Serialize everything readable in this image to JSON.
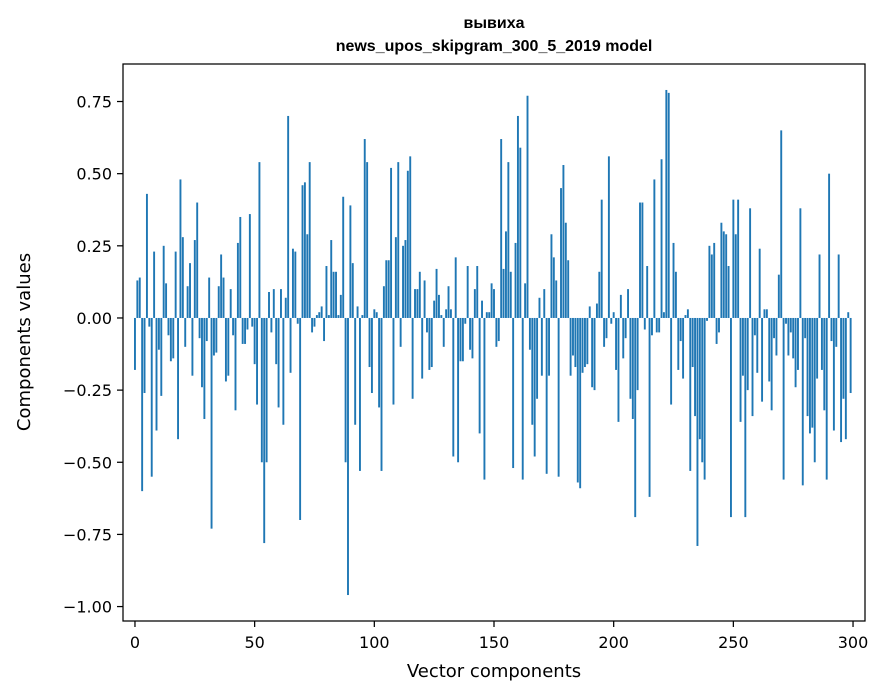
{
  "chart_data": {
    "type": "bar",
    "title": "вывиха",
    "subtitle": "news_upos_skipgram_300_5_2019 model",
    "xlabel": "Vector components",
    "ylabel": "Components values",
    "xlim": [
      -5,
      305
    ],
    "ylim": [
      -1.05,
      0.88
    ],
    "xticks": [
      0,
      50,
      100,
      150,
      200,
      250,
      300
    ],
    "yticks": [
      -1.0,
      -0.75,
      -0.5,
      -0.25,
      0.0,
      0.25,
      0.5,
      0.75
    ],
    "xtick_labels": [
      "0",
      "50",
      "100",
      "150",
      "200",
      "250",
      "300"
    ],
    "ytick_labels": [
      "−1.00",
      "−0.75",
      "−0.50",
      "−0.25",
      "0.00",
      "0.25",
      "0.50",
      "0.75"
    ],
    "bar_color": "#1f77b4",
    "values": [
      -0.18,
      0.13,
      0.14,
      -0.6,
      -0.26,
      0.43,
      -0.03,
      -0.55,
      0.23,
      -0.39,
      -0.11,
      -0.27,
      0.25,
      0.12,
      -0.06,
      -0.15,
      -0.14,
      0.23,
      -0.42,
      0.48,
      0.28,
      -0.1,
      0.11,
      0.19,
      -0.2,
      0.27,
      0.4,
      -0.07,
      -0.24,
      -0.35,
      -0.08,
      0.14,
      -0.73,
      -0.13,
      -0.12,
      0.11,
      0.22,
      0.14,
      -0.22,
      -0.2,
      0.1,
      -0.06,
      -0.32,
      0.26,
      0.35,
      -0.09,
      -0.09,
      -0.04,
      0.36,
      -0.03,
      -0.16,
      -0.3,
      0.54,
      -0.5,
      -0.78,
      -0.5,
      0.09,
      -0.05,
      0.1,
      -0.16,
      -0.31,
      0.1,
      -0.37,
      0.07,
      0.7,
      -0.19,
      0.24,
      0.23,
      -0.02,
      -0.7,
      0.46,
      0.47,
      0.29,
      0.54,
      -0.05,
      -0.03,
      0.01,
      0.02,
      0.04,
      -0.08,
      0.18,
      0.01,
      0.27,
      0.16,
      0.16,
      0.01,
      0.08,
      0.42,
      -0.5,
      -0.96,
      0.39,
      0.19,
      -0.37,
      0.04,
      -0.53,
      0.01,
      0.62,
      0.54,
      -0.17,
      -0.26,
      0.03,
      0.02,
      -0.31,
      -0.53,
      0.11,
      0.2,
      0.2,
      0.52,
      -0.3,
      0.28,
      0.54,
      -0.1,
      0.25,
      0.27,
      0.51,
      0.56,
      -0.28,
      0.1,
      0.1,
      0.16,
      -0.21,
      0.13,
      -0.05,
      -0.18,
      -0.17,
      0.06,
      0.17,
      0.08,
      0.01,
      -0.1,
      0.03,
      0.11,
      0.03,
      -0.48,
      0.21,
      -0.5,
      -0.15,
      -0.15,
      -0.02,
      0.18,
      -0.11,
      -0.14,
      0.1,
      0.18,
      -0.4,
      0.06,
      -0.56,
      0.02,
      0.02,
      0.12,
      0.1,
      -0.1,
      -0.08,
      0.62,
      0.17,
      0.3,
      0.54,
      0.16,
      -0.52,
      0.26,
      0.7,
      0.59,
      -0.56,
      0.12,
      0.77,
      -0.11,
      -0.37,
      -0.48,
      -0.28,
      0.07,
      -0.2,
      0.1,
      -0.54,
      -0.2,
      0.29,
      0.21,
      0.13,
      -0.55,
      0.45,
      0.53,
      0.33,
      0.2,
      -0.2,
      -0.13,
      -0.17,
      -0.57,
      -0.59,
      -0.19,
      -0.17,
      -0.16,
      0.04,
      -0.24,
      -0.25,
      0.05,
      0.16,
      0.41,
      -0.1,
      -0.07,
      0.56,
      -0.02,
      0.02,
      -0.18,
      -0.36,
      0.08,
      -0.14,
      -0.07,
      0.1,
      -0.28,
      -0.35,
      -0.69,
      -0.25,
      0.4,
      0.4,
      -0.04,
      0.18,
      -0.62,
      -0.06,
      0.48,
      -0.05,
      -0.05,
      0.55,
      0.02,
      0.79,
      0.78,
      -0.3,
      0.26,
      0.16,
      -0.18,
      -0.08,
      -0.21,
      0.01,
      0.03,
      -0.53,
      -0.17,
      -0.34,
      -0.79,
      -0.42,
      -0.5,
      -0.56,
      -0.01,
      0.25,
      0.22,
      0.26,
      -0.09,
      -0.05,
      0.33,
      0.3,
      0.29,
      0.18,
      -0.69,
      0.41,
      0.29,
      0.41,
      -0.36,
      -0.2,
      -0.69,
      -0.25,
      0.38,
      -0.34,
      -0.06,
      -0.19,
      0.24,
      -0.29,
      0.03,
      0.03,
      -0.22,
      -0.32,
      -0.07,
      -0.13,
      0.15,
      0.65,
      -0.56,
      -0.02,
      -0.13,
      -0.05,
      -0.14,
      -0.24,
      -0.18,
      0.38,
      -0.58,
      -0.07,
      -0.34,
      -0.4,
      -0.38,
      -0.5,
      -0.21,
      0.22,
      -0.18,
      -0.32,
      -0.56,
      0.5,
      -0.08,
      -0.39,
      -0.1,
      0.22,
      -0.43,
      -0.28,
      -0.42,
      0.02,
      -0.26
    ]
  }
}
